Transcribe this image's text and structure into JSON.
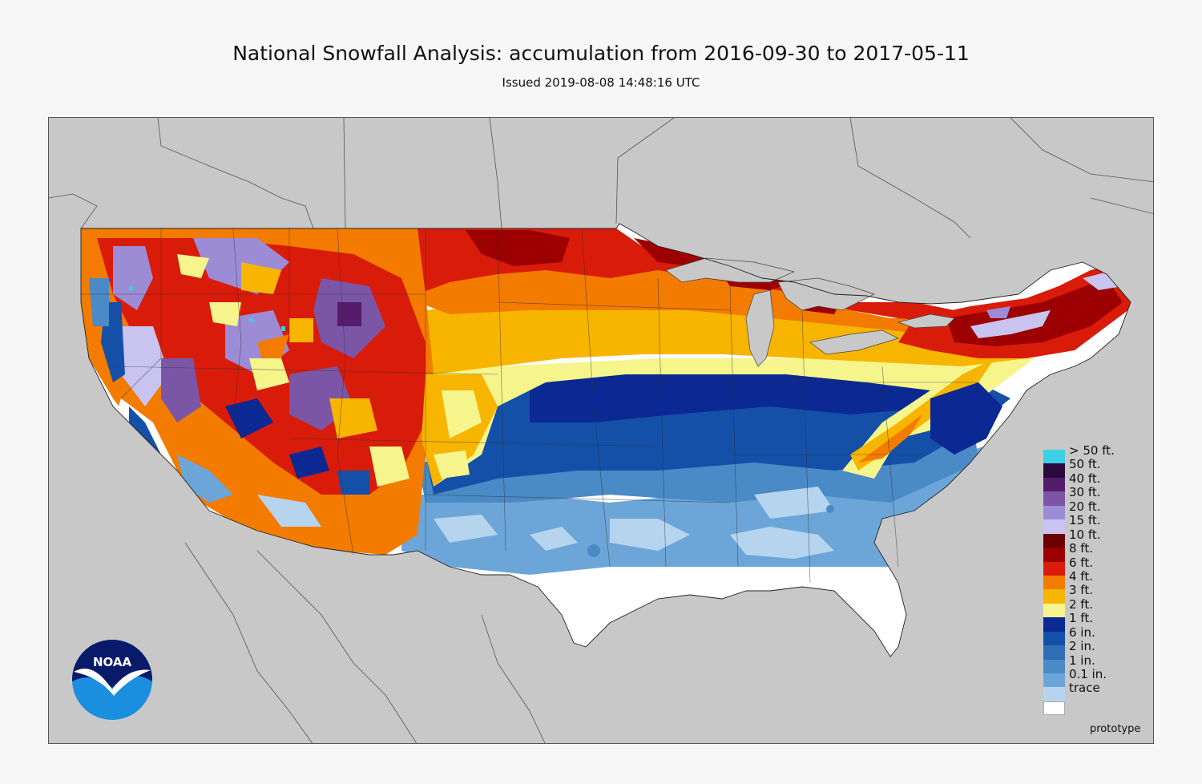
{
  "header": {
    "title": "National Snowfall Analysis: accumulation from 2016-09-30 to 2017-05-11",
    "subtitle": "Issued 2019-08-08 14:48:16 UTC"
  },
  "map": {
    "background_color": "#c8c8c8",
    "land_background": "#ffffff"
  },
  "legend": {
    "items": [
      {
        "label": "> 50 ft.",
        "color": "#3ccfe6"
      },
      {
        "label": "50 ft.",
        "color": "#2a0a3c"
      },
      {
        "label": "40 ft.",
        "color": "#541c6b"
      },
      {
        "label": "30 ft.",
        "color": "#7c56a6"
      },
      {
        "label": "20 ft.",
        "color": "#9c8cd6"
      },
      {
        "label": "15 ft.",
        "color": "#c9c3f0"
      },
      {
        "label": "10 ft.",
        "color": "#6a0000"
      },
      {
        "label": "8 ft.",
        "color": "#9c0000"
      },
      {
        "label": "6 ft.",
        "color": "#d91b0a"
      },
      {
        "label": "4 ft.",
        "color": "#f27b00"
      },
      {
        "label": "3 ft.",
        "color": "#f7b500"
      },
      {
        "label": "2 ft.",
        "color": "#f6f58c"
      },
      {
        "label": "1 ft.",
        "color": "#0b2893"
      },
      {
        "label": "6 in.",
        "color": "#1450a8"
      },
      {
        "label": "2 in.",
        "color": "#2f6fb5"
      },
      {
        "label": "1 in.",
        "color": "#4a8ac6"
      },
      {
        "label": "0.1 in.",
        "color": "#6ca6d9"
      },
      {
        "label": "trace",
        "color": "#b7d4ee"
      }
    ],
    "last_color": "#ffffff"
  },
  "footer": {
    "prototype_label": "prototype"
  },
  "logo": {
    "text": "NOAA",
    "top_color": "#0a1a6a",
    "bottom_color": "#1a8fe0"
  }
}
